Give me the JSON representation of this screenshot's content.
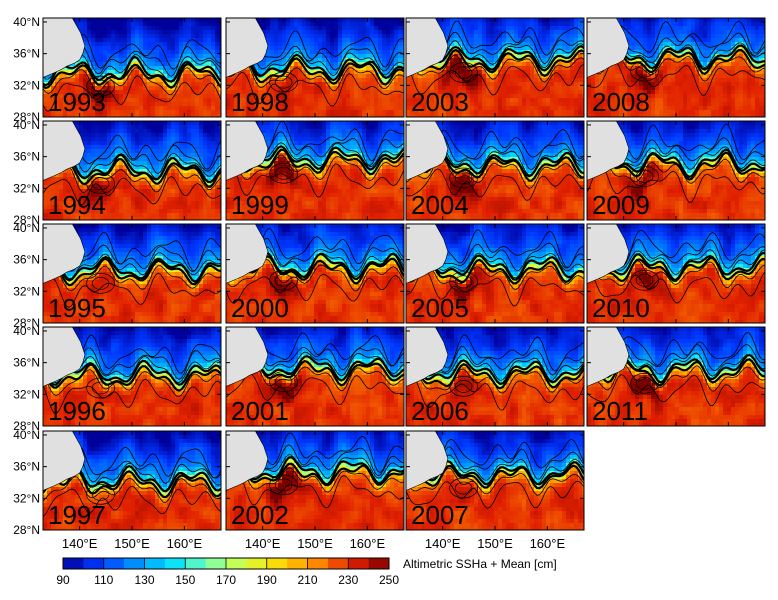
{
  "chart_data": {
    "type": "heatmap",
    "title": "",
    "colorbar_label": "Altimetric SSHa + Mean [cm]",
    "colorbar_ticks": [
      "90",
      "110",
      "130",
      "150",
      "170",
      "190",
      "210",
      "230",
      "250"
    ],
    "colorbar_range": [
      90,
      250
    ],
    "colormap": [
      "#00009a",
      "#0038ff",
      "#0090ff",
      "#00e0ff",
      "#7dffb0",
      "#d8ff40",
      "#ffd800",
      "#ff8a00",
      "#e02000",
      "#7a0000"
    ],
    "land_color": "#e0e0e0",
    "lon_ticks": [
      "140°E",
      "150°E",
      "160°E"
    ],
    "lat_ticks": [
      "40°N",
      "36°N",
      "32°N",
      "28°N"
    ],
    "lon_range": [
      133,
      167
    ],
    "lat_range": [
      28,
      40.5
    ],
    "grid": "panels 4 columns × 5 rows, column-major by year",
    "panels": [
      {
        "year": "1993",
        "front_lat": 33.5,
        "max_cm": 240
      },
      {
        "year": "1994",
        "front_lat": 34.2,
        "max_cm": 235
      },
      {
        "year": "1995",
        "front_lat": 34.6,
        "max_cm": 215
      },
      {
        "year": "1996",
        "front_lat": 34.4,
        "max_cm": 215
      },
      {
        "year": "1997",
        "front_lat": 34.1,
        "max_cm": 215
      },
      {
        "year": "1998",
        "front_lat": 34.0,
        "max_cm": 225
      },
      {
        "year": "1999",
        "front_lat": 35.5,
        "max_cm": 245
      },
      {
        "year": "2000",
        "front_lat": 35.0,
        "max_cm": 235
      },
      {
        "year": "2001",
        "front_lat": 35.2,
        "max_cm": 240
      },
      {
        "year": "2002",
        "front_lat": 35.3,
        "max_cm": 245
      },
      {
        "year": "2003",
        "front_lat": 35.2,
        "max_cm": 250
      },
      {
        "year": "2004",
        "front_lat": 34.9,
        "max_cm": 245
      },
      {
        "year": "2005",
        "front_lat": 34.8,
        "max_cm": 240
      },
      {
        "year": "2006",
        "front_lat": 34.6,
        "max_cm": 225
      },
      {
        "year": "2007",
        "front_lat": 34.9,
        "max_cm": 220
      },
      {
        "year": "2008",
        "front_lat": 35.4,
        "max_cm": 240
      },
      {
        "year": "2009",
        "front_lat": 35.1,
        "max_cm": 235
      },
      {
        "year": "2010",
        "front_lat": 35.0,
        "max_cm": 240
      },
      {
        "year": "2011",
        "front_lat": 35.0,
        "max_cm": 245
      }
    ]
  }
}
